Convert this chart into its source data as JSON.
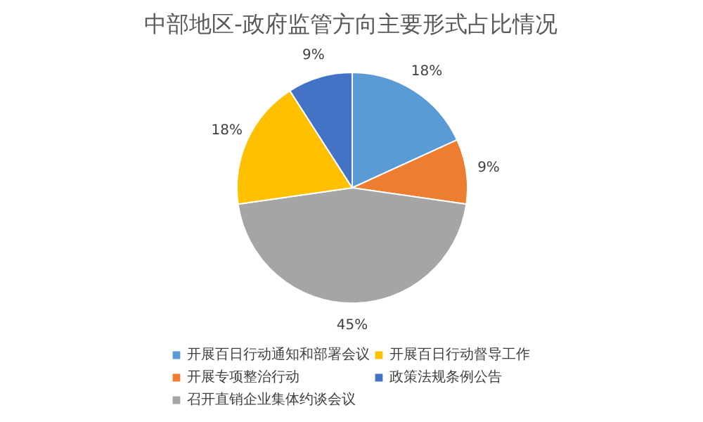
{
  "chart_data": {
    "type": "pie",
    "title": "中部地区-政府监管方向主要形式占比情况",
    "categories": [
      "开展百日行动通知和部署会议",
      "开展专项整治行动",
      "召开直销企业集体约谈会议",
      "开展百日行动督导工作",
      "政策法规条例公告"
    ],
    "values": [
      18,
      9,
      45,
      18,
      9
    ],
    "value_labels": [
      "18%",
      "9%",
      "45%",
      "18%",
      "9%"
    ],
    "colors": [
      "#5b9bd5",
      "#ed7d31",
      "#a5a5a5",
      "#ffc000",
      "#4472c4"
    ],
    "legend": "bottom"
  }
}
